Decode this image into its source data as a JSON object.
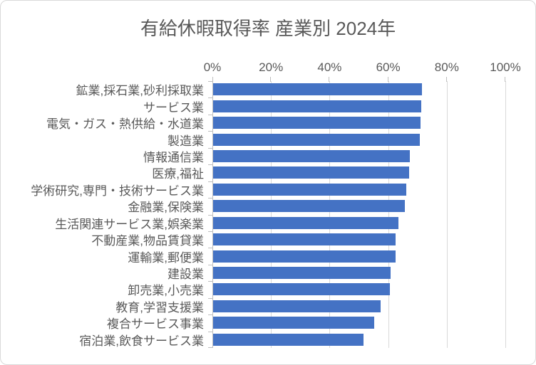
{
  "chart_data": {
    "type": "bar",
    "orientation": "horizontal",
    "title": "有給休暇取得率 産業別 2024年",
    "categories": [
      "鉱業,採石業,砂利採取業",
      "サービス業",
      "電気・ガス・熱供給・水道業",
      "製造業",
      "情報通信業",
      "医療,福祉",
      "学術研究,専門・技術サービス業",
      "金融業,保険業",
      "生活関連サービス業,娯楽業",
      "不動産業,物品賃貸業",
      "運輸業,郵便業",
      "建設業",
      "卸売業,小売業",
      "教育,学習支援業",
      "複合サービス事業",
      "宿泊業,飲食サービス業"
    ],
    "values": [
      71.4,
      71.0,
      70.7,
      70.5,
      67.2,
      66.8,
      65.9,
      65.5,
      63.3,
      62.4,
      62.2,
      60.6,
      60.4,
      57.2,
      55.0,
      51.3
    ],
    "unit": "%",
    "xlabel": "",
    "ylabel": "",
    "x_ticks": [
      "0%",
      "20%",
      "40%",
      "60%",
      "80%",
      "100%"
    ],
    "x_tick_values": [
      0,
      20,
      40,
      60,
      80,
      100
    ],
    "xlim": [
      0,
      100
    ],
    "grid": true,
    "legend": "none",
    "colors": {
      "bar": "#4472C4",
      "gridline": "#D9D9D9",
      "axis": "#BFBFBF",
      "text": "#595959",
      "border": "#D9D9D9",
      "background": "#FFFFFF"
    }
  }
}
